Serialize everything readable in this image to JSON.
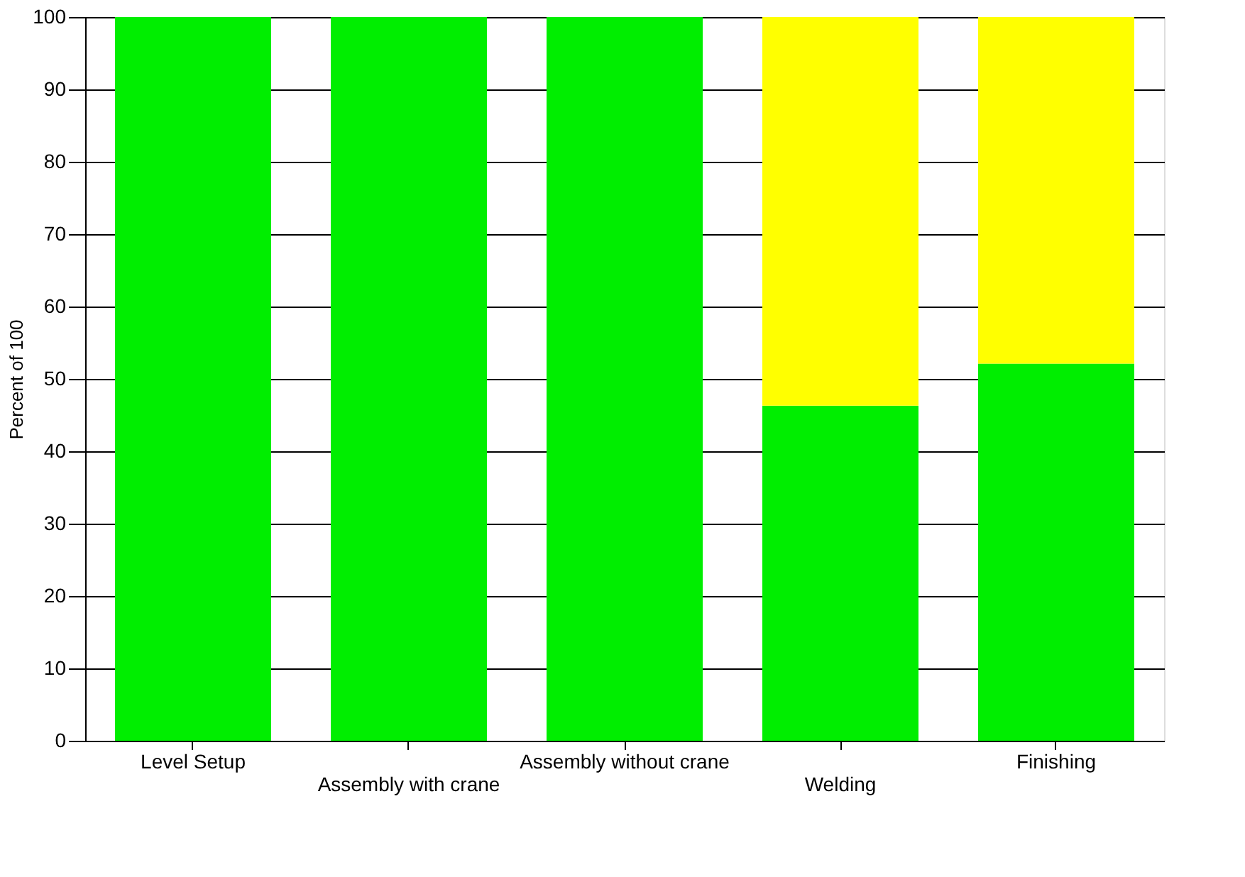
{
  "chart_data": {
    "type": "bar",
    "stacked": true,
    "ylabel": "Percent of 100",
    "categories": [
      "Level Setup",
      "Assembly with crane",
      "Assembly without crane",
      "Welding",
      "Finishing"
    ],
    "series": [
      {
        "color": "#00ee00",
        "values": [
          100,
          100,
          100,
          46.3,
          52.1
        ]
      },
      {
        "color": "#ffff00",
        "values": [
          null,
          null,
          null,
          53.7,
          47.9
        ]
      }
    ],
    "ylim": [
      0,
      100
    ],
    "yticks": [
      0,
      10,
      20,
      30,
      40,
      50,
      60,
      70,
      80,
      90,
      100
    ],
    "grid": "y"
  }
}
